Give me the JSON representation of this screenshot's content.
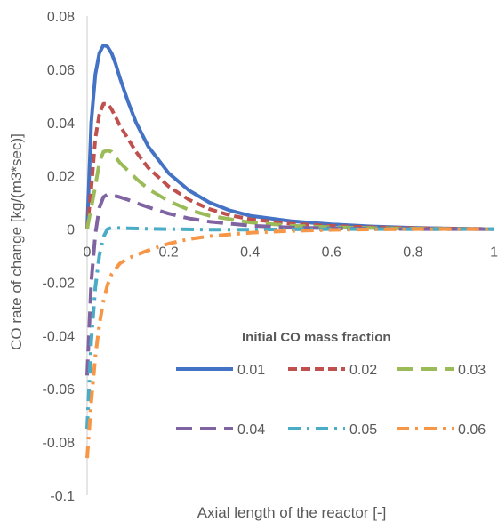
{
  "chart_data": {
    "type": "line",
    "xlabel": "Axial length of the reactor [-]",
    "ylabel": "CO rate of change [kg/(m3*sec)]",
    "xlim": [
      0,
      1
    ],
    "ylim": [
      -0.1,
      0.08
    ],
    "x_ticks": [
      "0",
      "0.2",
      "0.4",
      "0.6",
      "0.8",
      "1"
    ],
    "y_ticks": [
      "-0.1",
      "-0.08",
      "-0.06",
      "-0.04",
      "-0.02",
      "0",
      "0.02",
      "0.04",
      "0.06",
      "0.08"
    ],
    "grid": false,
    "legend_title": "Initial CO mass fraction",
    "legend_position": "lower-right",
    "series": [
      {
        "name": "0.01",
        "color": "#4472C4",
        "style": "solid",
        "x": [
          0,
          0.01,
          0.02,
          0.03,
          0.04,
          0.05,
          0.06,
          0.07,
          0.08,
          0.1,
          0.12,
          0.15,
          0.2,
          0.25,
          0.3,
          0.35,
          0.4,
          0.5,
          0.6,
          0.7,
          0.8,
          0.9,
          1.0
        ],
        "y": [
          0,
          0.04,
          0.058,
          0.066,
          0.069,
          0.0685,
          0.066,
          0.062,
          0.057,
          0.048,
          0.04,
          0.031,
          0.021,
          0.0145,
          0.01,
          0.007,
          0.005,
          0.003,
          0.0018,
          0.001,
          0.0005,
          0.0002,
          0
        ]
      },
      {
        "name": "0.02",
        "color": "#C0504D",
        "style": "dash",
        "x": [
          0,
          0.01,
          0.02,
          0.03,
          0.04,
          0.05,
          0.06,
          0.07,
          0.08,
          0.1,
          0.12,
          0.15,
          0.2,
          0.25,
          0.3,
          0.35,
          0.4,
          0.5,
          0.6,
          0.7,
          0.8,
          0.9,
          1.0
        ],
        "y": [
          0,
          0.015,
          0.034,
          0.043,
          0.047,
          0.047,
          0.045,
          0.042,
          0.039,
          0.034,
          0.029,
          0.023,
          0.016,
          0.011,
          0.0075,
          0.0052,
          0.0037,
          0.002,
          0.0012,
          0.0007,
          0.0004,
          0.0002,
          0
        ]
      },
      {
        "name": "0.03",
        "color": "#9BBB59",
        "style": "longdash",
        "x": [
          0,
          0.02,
          0.03,
          0.04,
          0.05,
          0.06,
          0.07,
          0.08,
          0.1,
          0.12,
          0.15,
          0.2,
          0.25,
          0.3,
          0.4,
          0.5,
          0.6,
          0.7,
          0.8,
          0.9,
          1.0
        ],
        "y": [
          0,
          0.016,
          0.025,
          0.029,
          0.0295,
          0.029,
          0.027,
          0.025,
          0.022,
          0.019,
          0.015,
          0.0105,
          0.0072,
          0.005,
          0.0025,
          0.0013,
          0.0007,
          0.0004,
          0.0002,
          0.0001,
          0
        ]
      },
      {
        "name": "0.04",
        "color": "#8064A2",
        "style": "longdash",
        "x": [
          0,
          0.01,
          0.02,
          0.03,
          0.04,
          0.05,
          0.06,
          0.08,
          0.1,
          0.12,
          0.15,
          0.2,
          0.25,
          0.3,
          0.4,
          0.5,
          0.6,
          0.7,
          0.8,
          0.9,
          1.0
        ],
        "y": [
          -0.055,
          -0.02,
          -0.002,
          0.008,
          0.012,
          0.013,
          0.0128,
          0.012,
          0.011,
          0.0098,
          0.0082,
          0.0058,
          0.004,
          0.0028,
          0.0013,
          0.0006,
          0.0003,
          0.0001,
          0,
          0,
          0
        ]
      },
      {
        "name": "0.05",
        "color": "#4BACC6",
        "style": "dashdot",
        "x": [
          0,
          0.01,
          0.02,
          0.03,
          0.04,
          0.05,
          0.06,
          0.08,
          0.1,
          0.15,
          0.2,
          0.3,
          0.4,
          0.5,
          0.6,
          0.7,
          0.8,
          0.9,
          1.0
        ],
        "y": [
          -0.075,
          -0.042,
          -0.022,
          -0.01,
          -0.003,
          0,
          0.0005,
          0.0004,
          0.0003,
          0.0001,
          0,
          -0.0002,
          -0.0002,
          -0.0001,
          0,
          0,
          0,
          0,
          0
        ]
      },
      {
        "name": "0.06",
        "color": "#F79646",
        "style": "dashdot",
        "x": [
          0,
          0.01,
          0.02,
          0.03,
          0.04,
          0.05,
          0.06,
          0.08,
          0.1,
          0.15,
          0.2,
          0.25,
          0.3,
          0.4,
          0.5,
          0.6,
          0.7,
          0.8,
          0.9,
          1.0
        ],
        "y": [
          -0.086,
          -0.065,
          -0.048,
          -0.036,
          -0.027,
          -0.021,
          -0.017,
          -0.013,
          -0.011,
          -0.008,
          -0.0055,
          -0.0038,
          -0.0027,
          -0.0014,
          -0.0007,
          -0.0003,
          -0.0001,
          0,
          0,
          0
        ]
      }
    ]
  }
}
